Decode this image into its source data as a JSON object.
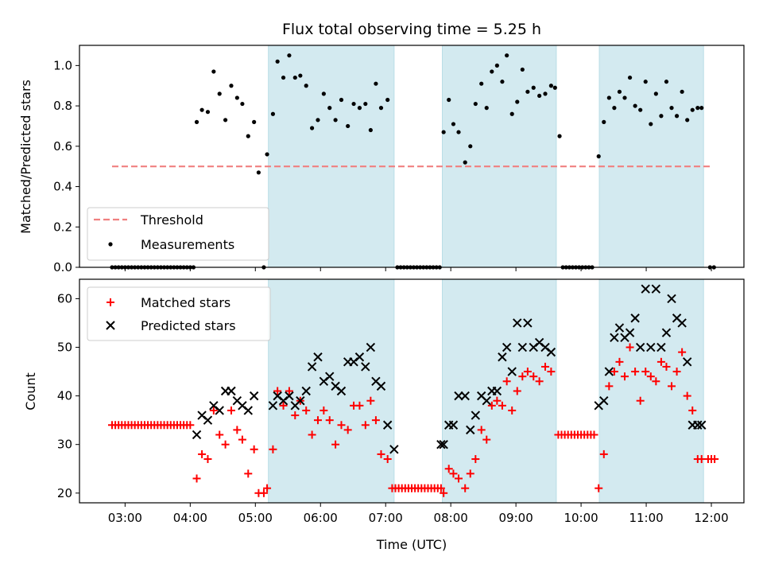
{
  "chart_data": {
    "title": "Flux total observing time = 5.25 h",
    "xlabel": "Time (UTC)",
    "x_unit": "decimal hour UTC",
    "xlim": [
      2.3,
      12.5
    ],
    "xticks": [
      {
        "value": 3,
        "label": "03:00"
      },
      {
        "value": 4,
        "label": "04:00"
      },
      {
        "value": 5,
        "label": "05:00"
      },
      {
        "value": 6,
        "label": "06:00"
      },
      {
        "value": 7,
        "label": "07:00"
      },
      {
        "value": 8,
        "label": "08:00"
      },
      {
        "value": 9,
        "label": "09:00"
      },
      {
        "value": 10,
        "label": "10:00"
      },
      {
        "value": 11,
        "label": "11:00"
      },
      {
        "value": 12,
        "label": "12:00"
      }
    ],
    "shaded_intervals": [
      [
        5.2,
        7.13
      ],
      [
        7.87,
        9.62
      ],
      [
        10.28,
        11.88
      ]
    ],
    "shade_color": "#d3eaf0",
    "panels": [
      {
        "type": "scatter",
        "ylabel": "Matched/Predicted stars",
        "ylim": [
          0,
          1.1
        ],
        "yticks": [
          {
            "value": 0.0,
            "label": "0.0"
          },
          {
            "value": 0.2,
            "label": "0.2"
          },
          {
            "value": 0.4,
            "label": "0.4"
          },
          {
            "value": 0.6,
            "label": "0.6"
          },
          {
            "value": 0.8,
            "label": "0.8"
          },
          {
            "value": 1.0,
            "label": "1.0"
          }
        ],
        "legend_position": "lower-left",
        "threshold": {
          "name": "Threshold",
          "y": 0.5,
          "x_range": [
            2.8,
            12.0
          ],
          "color": "#f08080"
        },
        "series": [
          {
            "name": "Measurements",
            "marker": "dot",
            "color": "#000000",
            "x": [
              2.8,
              2.85,
              2.9,
              2.95,
              3.0,
              3.05,
              3.1,
              3.15,
              3.2,
              3.25,
              3.3,
              3.35,
              3.4,
              3.45,
              3.5,
              3.55,
              3.6,
              3.65,
              3.7,
              3.75,
              3.8,
              3.85,
              3.9,
              3.95,
              4.0,
              4.05,
              4.1,
              4.18,
              4.27,
              4.36,
              4.45,
              4.54,
              4.63,
              4.72,
              4.8,
              4.89,
              4.98,
              5.05,
              5.13,
              5.18,
              5.27,
              5.34,
              5.43,
              5.52,
              5.61,
              5.69,
              5.78,
              5.87,
              5.96,
              6.05,
              6.14,
              6.23,
              6.32,
              6.42,
              6.51,
              6.6,
              6.69,
              6.77,
              6.85,
              6.93,
              7.03,
              7.18,
              7.23,
              7.28,
              7.33,
              7.38,
              7.43,
              7.48,
              7.53,
              7.58,
              7.63,
              7.68,
              7.73,
              7.78,
              7.83,
              7.89,
              7.97,
              8.04,
              8.12,
              8.22,
              8.3,
              8.38,
              8.47,
              8.55,
              8.63,
              8.71,
              8.79,
              8.86,
              8.94,
              9.02,
              9.1,
              9.18,
              9.27,
              9.36,
              9.45,
              9.54,
              9.6,
              9.67,
              9.72,
              9.77,
              9.82,
              9.87,
              9.92,
              9.97,
              10.02,
              10.07,
              10.12,
              10.17,
              10.27,
              10.35,
              10.43,
              10.51,
              10.59,
              10.67,
              10.75,
              10.83,
              10.91,
              10.99,
              11.07,
              11.15,
              11.23,
              11.31,
              11.39,
              11.47,
              11.55,
              11.63,
              11.71,
              11.79,
              11.85,
              11.98,
              12.04
            ],
            "y": [
              0,
              0,
              0,
              0,
              0,
              0,
              0,
              0,
              0,
              0,
              0,
              0,
              0,
              0,
              0,
              0,
              0,
              0,
              0,
              0,
              0,
              0,
              0,
              0,
              0,
              0,
              0.72,
              0.78,
              0.77,
              0.97,
              0.86,
              0.73,
              0.9,
              0.84,
              0.81,
              0.65,
              0.72,
              0.47,
              0,
              0.56,
              0.76,
              1.02,
              0.94,
              1.05,
              0.94,
              0.95,
              0.9,
              0.69,
              0.73,
              0.86,
              0.79,
              0.73,
              0.83,
              0.7,
              0.81,
              0.79,
              0.81,
              0.68,
              0.91,
              0.79,
              0.83,
              0,
              0,
              0,
              0,
              0,
              0,
              0,
              0,
              0,
              0,
              0,
              0,
              0,
              0,
              0.67,
              0.83,
              0.71,
              0.67,
              0.52,
              0.6,
              0.81,
              0.91,
              0.79,
              0.97,
              1.0,
              0.92,
              1.05,
              0.76,
              0.82,
              0.98,
              0.87,
              0.89,
              0.85,
              0.86,
              0.9,
              0.89,
              0.65,
              0,
              0,
              0,
              0,
              0,
              0,
              0,
              0,
              0,
              0,
              0.55,
              0.72,
              0.84,
              0.79,
              0.87,
              0.84,
              0.94,
              0.8,
              0.78,
              0.92,
              0.71,
              0.86,
              0.75,
              0.92,
              0.79,
              0.75,
              0.87,
              0.73,
              0.78,
              0.79,
              0.79,
              0,
              0
            ]
          }
        ]
      },
      {
        "type": "scatter",
        "ylabel": "Count",
        "ylim": [
          18,
          64
        ],
        "yticks": [
          {
            "value": 20,
            "label": "20"
          },
          {
            "value": 30,
            "label": "30"
          },
          {
            "value": 40,
            "label": "40"
          },
          {
            "value": 50,
            "label": "50"
          },
          {
            "value": 60,
            "label": "60"
          }
        ],
        "legend_position": "top-left",
        "series": [
          {
            "name": "Matched stars",
            "marker": "plus",
            "color": "#ff0000",
            "x": [
              2.8,
              2.85,
              2.9,
              2.95,
              3.0,
              3.05,
              3.1,
              3.15,
              3.2,
              3.25,
              3.3,
              3.35,
              3.4,
              3.45,
              3.5,
              3.55,
              3.6,
              3.65,
              3.7,
              3.75,
              3.8,
              3.85,
              3.9,
              3.95,
              4.0,
              4.1,
              4.18,
              4.27,
              4.36,
              4.45,
              4.54,
              4.63,
              4.72,
              4.8,
              4.89,
              4.98,
              5.05,
              5.13,
              5.18,
              5.27,
              5.34,
              5.43,
              5.52,
              5.61,
              5.69,
              5.78,
              5.87,
              5.96,
              6.05,
              6.14,
              6.23,
              6.32,
              6.42,
              6.51,
              6.6,
              6.69,
              6.77,
              6.85,
              6.93,
              7.03,
              7.1,
              7.15,
              7.2,
              7.25,
              7.3,
              7.35,
              7.4,
              7.45,
              7.5,
              7.55,
              7.6,
              7.65,
              7.7,
              7.75,
              7.8,
              7.85,
              7.89,
              7.97,
              8.04,
              8.12,
              8.22,
              8.3,
              8.38,
              8.47,
              8.55,
              8.63,
              8.71,
              8.79,
              8.86,
              8.94,
              9.02,
              9.1,
              9.18,
              9.27,
              9.36,
              9.45,
              9.54,
              9.65,
              9.7,
              9.75,
              9.8,
              9.85,
              9.9,
              9.95,
              10.0,
              10.05,
              10.1,
              10.15,
              10.2,
              10.27,
              10.35,
              10.43,
              10.51,
              10.59,
              10.67,
              10.75,
              10.83,
              10.91,
              10.99,
              11.07,
              11.15,
              11.23,
              11.31,
              11.39,
              11.47,
              11.55,
              11.63,
              11.71,
              11.79,
              11.85,
              11.95,
              12.0,
              12.05
            ],
            "y": [
              34,
              34,
              34,
              34,
              34,
              34,
              34,
              34,
              34,
              34,
              34,
              34,
              34,
              34,
              34,
              34,
              34,
              34,
              34,
              34,
              34,
              34,
              34,
              34,
              34,
              23,
              28,
              27,
              37,
              32,
              30,
              37,
              33,
              31,
              24,
              29,
              20,
              20,
              21,
              29,
              41,
              38,
              41,
              36,
              39,
              37,
              32,
              35,
              37,
              35,
              30,
              34,
              33,
              38,
              38,
              34,
              39,
              35,
              28,
              27,
              21,
              21,
              21,
              21,
              21,
              21,
              21,
              21,
              21,
              21,
              21,
              21,
              21,
              21,
              21,
              21,
              20,
              25,
              24,
              23,
              21,
              24,
              27,
              33,
              31,
              38,
              39,
              38,
              43,
              37,
              41,
              44,
              45,
              44,
              43,
              46,
              45,
              32,
              32,
              32,
              32,
              32,
              32,
              32,
              32,
              32,
              32,
              32,
              32,
              21,
              28,
              42,
              45,
              47,
              44,
              50,
              45,
              39,
              45,
              44,
              43,
              47,
              46,
              42,
              45,
              49,
              40,
              37,
              27,
              27,
              27,
              27,
              27
            ],
            "show_legend": true
          },
          {
            "name": "Predicted stars",
            "marker": "x",
            "color": "#000000",
            "x": [
              4.1,
              4.18,
              4.27,
              4.36,
              4.45,
              4.54,
              4.63,
              4.72,
              4.8,
              4.89,
              4.98,
              5.27,
              5.34,
              5.43,
              5.52,
              5.61,
              5.69,
              5.78,
              5.87,
              5.96,
              6.05,
              6.14,
              6.23,
              6.32,
              6.42,
              6.51,
              6.6,
              6.69,
              6.77,
              6.85,
              6.93,
              7.03,
              7.13,
              7.85,
              7.89,
              7.97,
              8.04,
              8.12,
              8.22,
              8.3,
              8.38,
              8.47,
              8.55,
              8.63,
              8.71,
              8.79,
              8.86,
              8.94,
              9.02,
              9.1,
              9.18,
              9.27,
              9.36,
              9.45,
              9.54,
              10.27,
              10.35,
              10.43,
              10.51,
              10.59,
              10.67,
              10.75,
              10.83,
              10.91,
              10.99,
              11.07,
              11.15,
              11.23,
              11.31,
              11.39,
              11.47,
              11.55,
              11.63,
              11.71,
              11.79,
              11.85
            ],
            "y": [
              32,
              36,
              35,
              38,
              37,
              41,
              41,
              39,
              38,
              37,
              40,
              38,
              40,
              39,
              40,
              38,
              39,
              41,
              46,
              48,
              43,
              44,
              42,
              41,
              47,
              47,
              48,
              46,
              50,
              43,
              42,
              34,
              29,
              30,
              30,
              34,
              34,
              40,
              40,
              33,
              36,
              40,
              39,
              41,
              41,
              48,
              50,
              45,
              55,
              50,
              55,
              50,
              51,
              50,
              49,
              38,
              39,
              45,
              52,
              54,
              52,
              53,
              56,
              50,
              62,
              50,
              62,
              50,
              53,
              60,
              56,
              55,
              47,
              34,
              34,
              34
            ],
            "show_legend": true
          }
        ]
      }
    ]
  }
}
